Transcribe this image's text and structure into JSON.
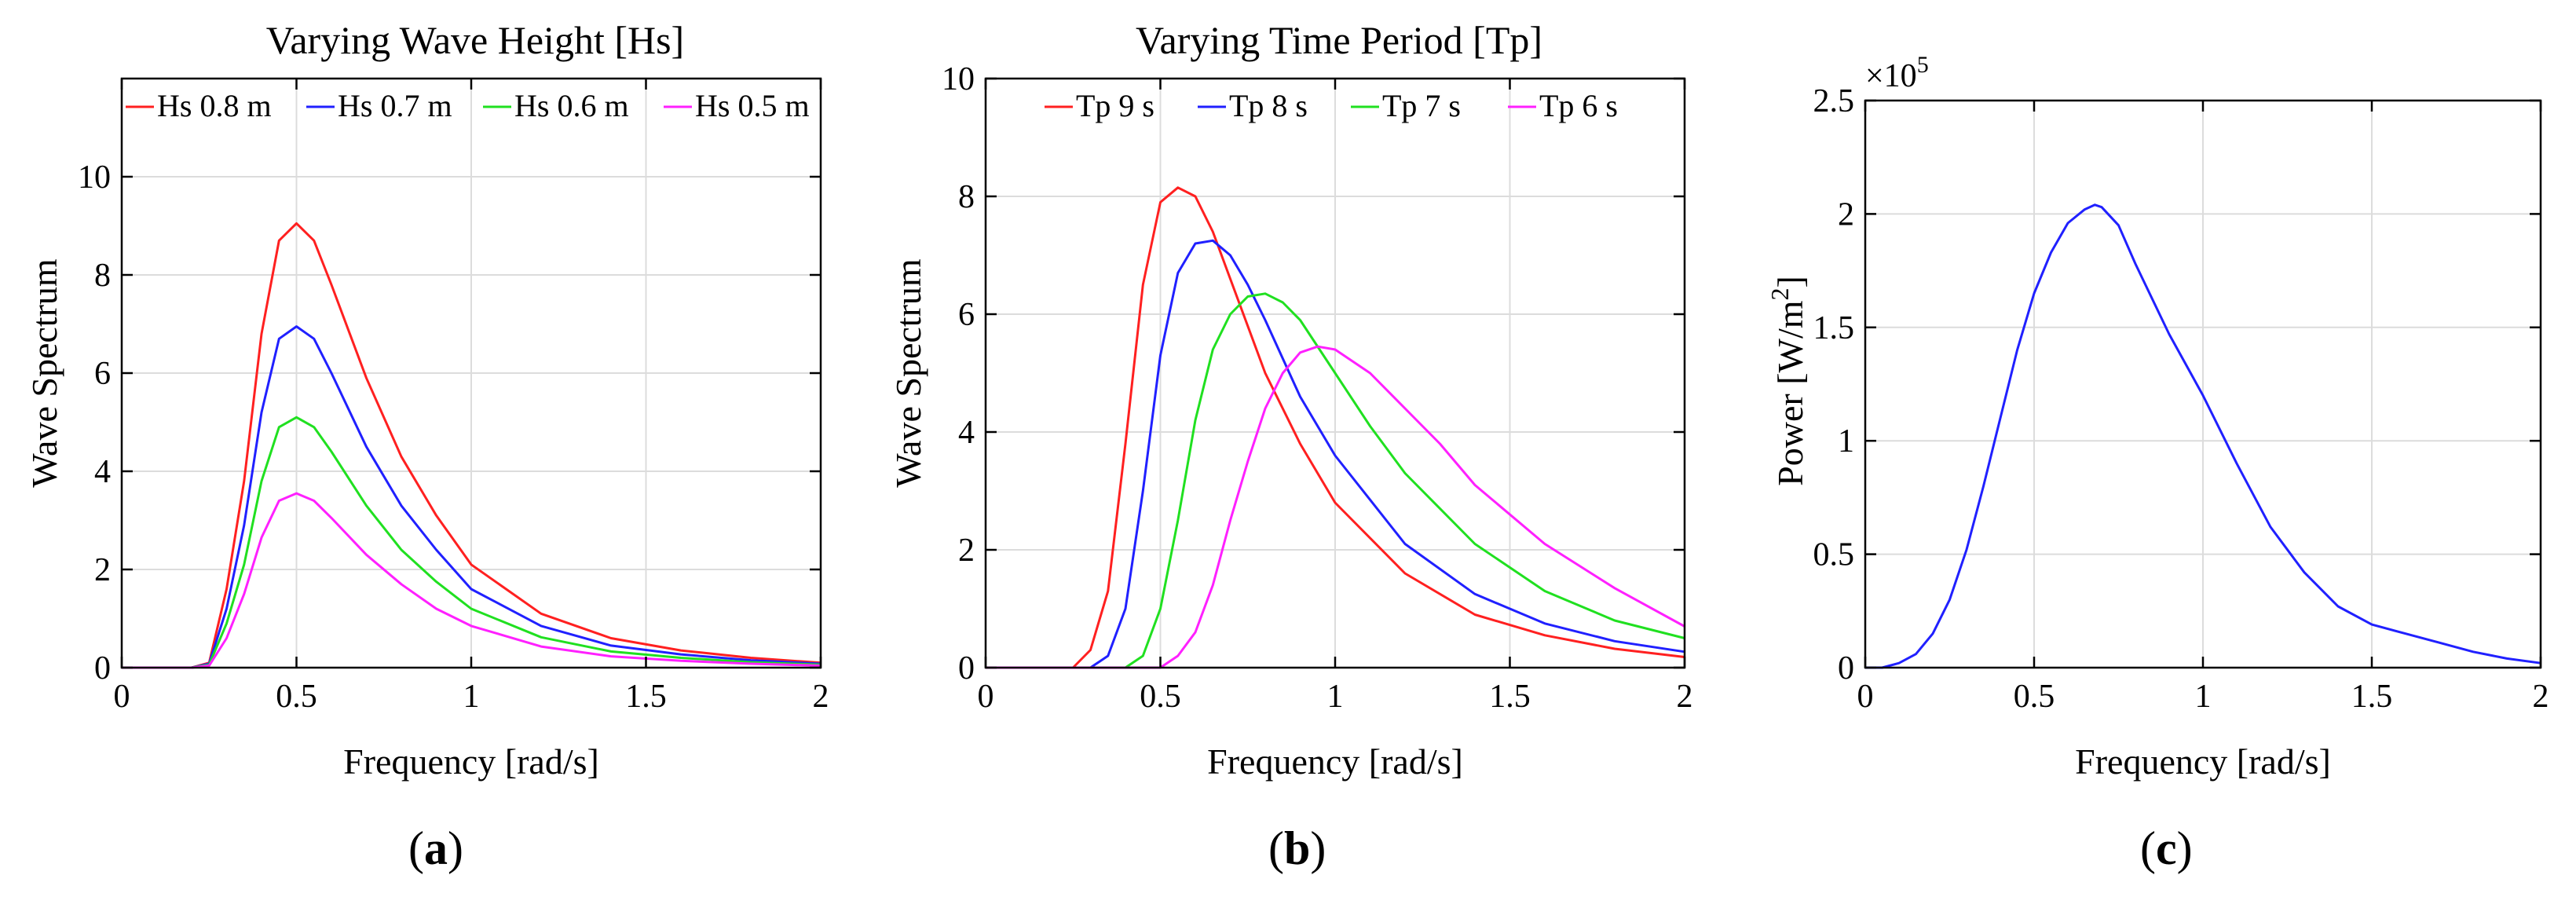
{
  "chart_data": [
    {
      "type": "line",
      "panel_label": "a",
      "title": "Varying Wave Height [Hs]",
      "xlabel": "Frequency [rad/s]",
      "ylabel": "Wave Spectrum",
      "xlim": [
        0,
        2
      ],
      "ylim": [
        0,
        12
      ],
      "xticks": [
        0,
        0.5,
        1,
        1.5,
        2
      ],
      "xtick_labels": [
        "0",
        "0.5",
        "1",
        "1.5",
        "2"
      ],
      "yticks": [
        0,
        2,
        4,
        6,
        8,
        10
      ],
      "ytick_labels": [
        "0",
        "2",
        "4",
        "6",
        "8",
        "10"
      ],
      "grid": true,
      "legend_position": "top",
      "x": [
        0,
        0.1,
        0.2,
        0.25,
        0.3,
        0.35,
        0.4,
        0.45,
        0.5,
        0.55,
        0.6,
        0.7,
        0.8,
        0.9,
        1.0,
        1.2,
        1.4,
        1.6,
        1.8,
        2.0
      ],
      "series": [
        {
          "name": "Hs 0.8 m",
          "color": "#ff2020",
          "values": [
            0,
            0,
            0,
            0.1,
            1.6,
            3.8,
            6.8,
            8.7,
            9.05,
            8.7,
            7.8,
            5.9,
            4.3,
            3.1,
            2.1,
            1.1,
            0.6,
            0.35,
            0.2,
            0.1
          ]
        },
        {
          "name": "Hs 0.7 m",
          "color": "#2020ff",
          "values": [
            0,
            0,
            0,
            0.08,
            1.2,
            2.9,
            5.2,
            6.7,
            6.95,
            6.7,
            6.0,
            4.5,
            3.3,
            2.4,
            1.6,
            0.85,
            0.45,
            0.27,
            0.15,
            0.08
          ]
        },
        {
          "name": "Hs 0.6 m",
          "color": "#20e020",
          "values": [
            0,
            0,
            0,
            0.06,
            0.9,
            2.1,
            3.8,
            4.9,
            5.1,
            4.9,
            4.4,
            3.3,
            2.4,
            1.75,
            1.2,
            0.62,
            0.33,
            0.2,
            0.11,
            0.06
          ]
        },
        {
          "name": "Hs 0.5 m",
          "color": "#ff20ff",
          "values": [
            0,
            0,
            0,
            0.04,
            0.6,
            1.5,
            2.65,
            3.4,
            3.55,
            3.4,
            3.05,
            2.3,
            1.7,
            1.2,
            0.85,
            0.43,
            0.23,
            0.14,
            0.08,
            0.04
          ]
        }
      ]
    },
    {
      "type": "line",
      "panel_label": "b",
      "title": "Varying Time Period [Tp]",
      "xlabel": "Frequency [rad/s]",
      "ylabel": "Wave Spectrum",
      "xlim": [
        0,
        2
      ],
      "ylim": [
        0,
        10
      ],
      "xticks": [
        0,
        0.5,
        1,
        1.5,
        2
      ],
      "xtick_labels": [
        "0",
        "0.5",
        "1",
        "1.5",
        "2"
      ],
      "yticks": [
        0,
        2,
        4,
        6,
        8,
        10
      ],
      "ytick_labels": [
        "0",
        "2",
        "4",
        "6",
        "8",
        "10"
      ],
      "grid": true,
      "legend_position": "top",
      "series": [
        {
          "name": "Tp 9 s",
          "color": "#ff2020",
          "x": [
            0,
            0.25,
            0.3,
            0.35,
            0.4,
            0.45,
            0.5,
            0.55,
            0.6,
            0.65,
            0.7,
            0.8,
            0.9,
            1.0,
            1.2,
            1.4,
            1.6,
            1.8,
            2.0
          ],
          "values": [
            0,
            0,
            0.3,
            1.3,
            3.8,
            6.5,
            7.9,
            8.15,
            8.0,
            7.4,
            6.6,
            5.0,
            3.8,
            2.8,
            1.6,
            0.9,
            0.55,
            0.32,
            0.18
          ]
        },
        {
          "name": "Tp 8 s",
          "color": "#2020ff",
          "x": [
            0,
            0.3,
            0.35,
            0.4,
            0.45,
            0.5,
            0.55,
            0.6,
            0.65,
            0.7,
            0.75,
            0.8,
            0.9,
            1.0,
            1.2,
            1.4,
            1.6,
            1.8,
            2.0
          ],
          "values": [
            0,
            0,
            0.2,
            1.0,
            3.0,
            5.3,
            6.7,
            7.2,
            7.25,
            7.0,
            6.5,
            5.9,
            4.6,
            3.6,
            2.1,
            1.25,
            0.75,
            0.45,
            0.27
          ]
        },
        {
          "name": "Tp 7 s",
          "color": "#20e020",
          "x": [
            0,
            0.4,
            0.45,
            0.5,
            0.55,
            0.6,
            0.65,
            0.7,
            0.75,
            0.8,
            0.85,
            0.9,
            1.0,
            1.1,
            1.2,
            1.4,
            1.6,
            1.8,
            2.0
          ],
          "values": [
            0,
            0,
            0.2,
            1.0,
            2.5,
            4.2,
            5.4,
            6.0,
            6.3,
            6.35,
            6.2,
            5.9,
            5.0,
            4.1,
            3.3,
            2.1,
            1.3,
            0.8,
            0.5
          ]
        },
        {
          "name": "Tp 6 s",
          "color": "#ff20ff",
          "x": [
            0,
            0.5,
            0.55,
            0.6,
            0.65,
            0.7,
            0.75,
            0.8,
            0.85,
            0.9,
            0.95,
            1.0,
            1.1,
            1.2,
            1.3,
            1.4,
            1.6,
            1.8,
            2.0
          ],
          "values": [
            0,
            0,
            0.2,
            0.6,
            1.4,
            2.5,
            3.5,
            4.4,
            5.0,
            5.35,
            5.45,
            5.4,
            5.0,
            4.4,
            3.8,
            3.1,
            2.1,
            1.35,
            0.7
          ]
        }
      ]
    },
    {
      "type": "line",
      "panel_label": "c",
      "title": "",
      "xlabel": "Frequency [rad/s]",
      "ylabel": "Power [W/m²]",
      "ylabel_main": "Power [W/m",
      "ylabel_sup": "2",
      "ylabel_end": "]",
      "scale_prefix": "×10",
      "scale_exp": "5",
      "xlim": [
        0,
        2
      ],
      "ylim": [
        0,
        250000
      ],
      "xticks": [
        0,
        0.5,
        1,
        1.5,
        2
      ],
      "xtick_labels": [
        "0",
        "0.5",
        "1",
        "1.5",
        "2"
      ],
      "yticks": [
        0,
        50000,
        100000,
        150000,
        200000,
        250000
      ],
      "ytick_labels": [
        "0",
        "0.5",
        "1",
        "1.5",
        "2",
        "2.5"
      ],
      "grid": true,
      "series": [
        {
          "name": "Power",
          "color": "#2020ff",
          "x": [
            0,
            0.05,
            0.1,
            0.15,
            0.2,
            0.25,
            0.3,
            0.35,
            0.4,
            0.45,
            0.5,
            0.55,
            0.6,
            0.65,
            0.68,
            0.7,
            0.75,
            0.8,
            0.9,
            1.0,
            1.1,
            1.2,
            1.3,
            1.4,
            1.5,
            1.6,
            1.7,
            1.8,
            1.9,
            2.0
          ],
          "values": [
            0,
            0,
            2000,
            6000,
            15000,
            30000,
            52000,
            80000,
            110000,
            140000,
            165000,
            183000,
            196000,
            202000,
            204000,
            203000,
            195000,
            178000,
            147000,
            120000,
            90000,
            62000,
            42000,
            27000,
            19000,
            15000,
            11000,
            7000,
            4000,
            2000
          ]
        }
      ]
    }
  ]
}
